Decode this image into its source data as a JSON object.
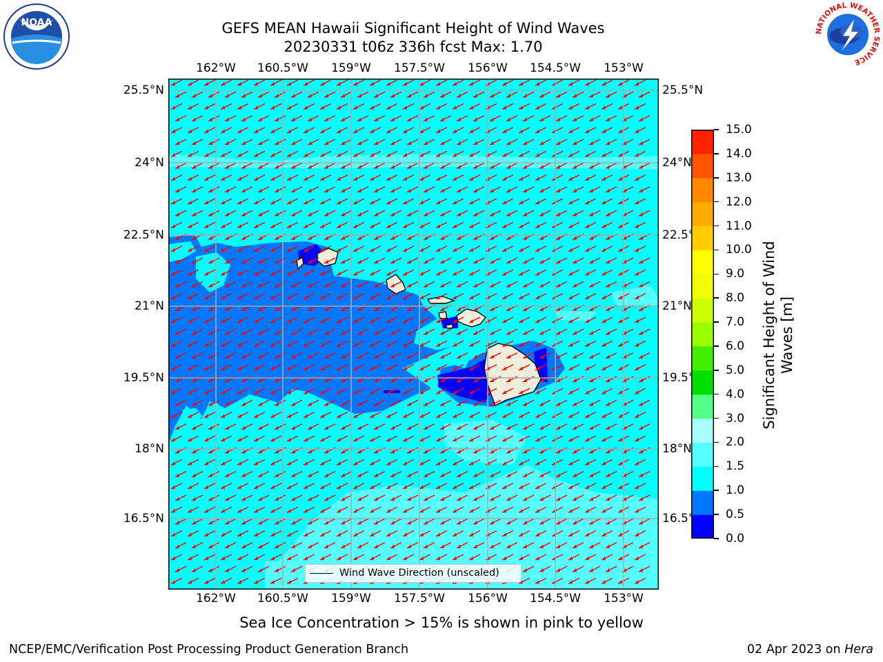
{
  "title": {
    "line1": "GEFS MEAN Hawaii Significant Height of Wind Waves",
    "line2": "20230331 t06z 336h fcst   Max: 1.70"
  },
  "map": {
    "lon_labels": [
      "162°W",
      "160.5°W",
      "159°W",
      "157.5°W",
      "156°W",
      "154.5°W",
      "153°W"
    ],
    "lat_labels": [
      "25.5°N",
      "24°N",
      "22.5°N",
      "21°N",
      "19.5°N",
      "18°N",
      "16.5°N"
    ],
    "legend_label": "Wind Wave Direction (unscaled)",
    "colors": {
      "ocean_cyan": "#00ffff",
      "light_cyan": "#55ffff",
      "mid_blue": "#0077ff",
      "deep_blue": "#0000ff",
      "land": "#efeedd",
      "arrow": "#ff0000"
    }
  },
  "colorbar": {
    "label_line1": "Significant Height of Wind",
    "label_line2": "Waves [m]",
    "ticks": [
      "0.0",
      "0.5",
      "1.0",
      "1.5",
      "2.0",
      "3.0",
      "4.0",
      "5.0",
      "6.0",
      "7.0",
      "8.0",
      "9.0",
      "10.0",
      "11.0",
      "12.0",
      "13.0",
      "14.0",
      "15.0"
    ],
    "colors": [
      "#0000ff",
      "#0077ff",
      "#00ffff",
      "#55ffff",
      "#aaffff",
      "#55ff88",
      "#00dd00",
      "#44ee00",
      "#99ff00",
      "#ccff00",
      "#eeff00",
      "#ffff00",
      "#ffcc00",
      "#ffaa00",
      "#ff8800",
      "#ff5500",
      "#ff2200"
    ]
  },
  "sea_ice_note": "Sea Ice Concentration > 15% is shown in pink to yellow",
  "footer": {
    "left": "NCEP/EMC/Verification Post Processing Product Generation Branch",
    "right_date": "02 Apr 2023 on ",
    "right_host": "Hera"
  },
  "logos": {
    "noaa_text": "NOAA",
    "nws_text": "NATIONAL WEATHER SERVICE"
  }
}
